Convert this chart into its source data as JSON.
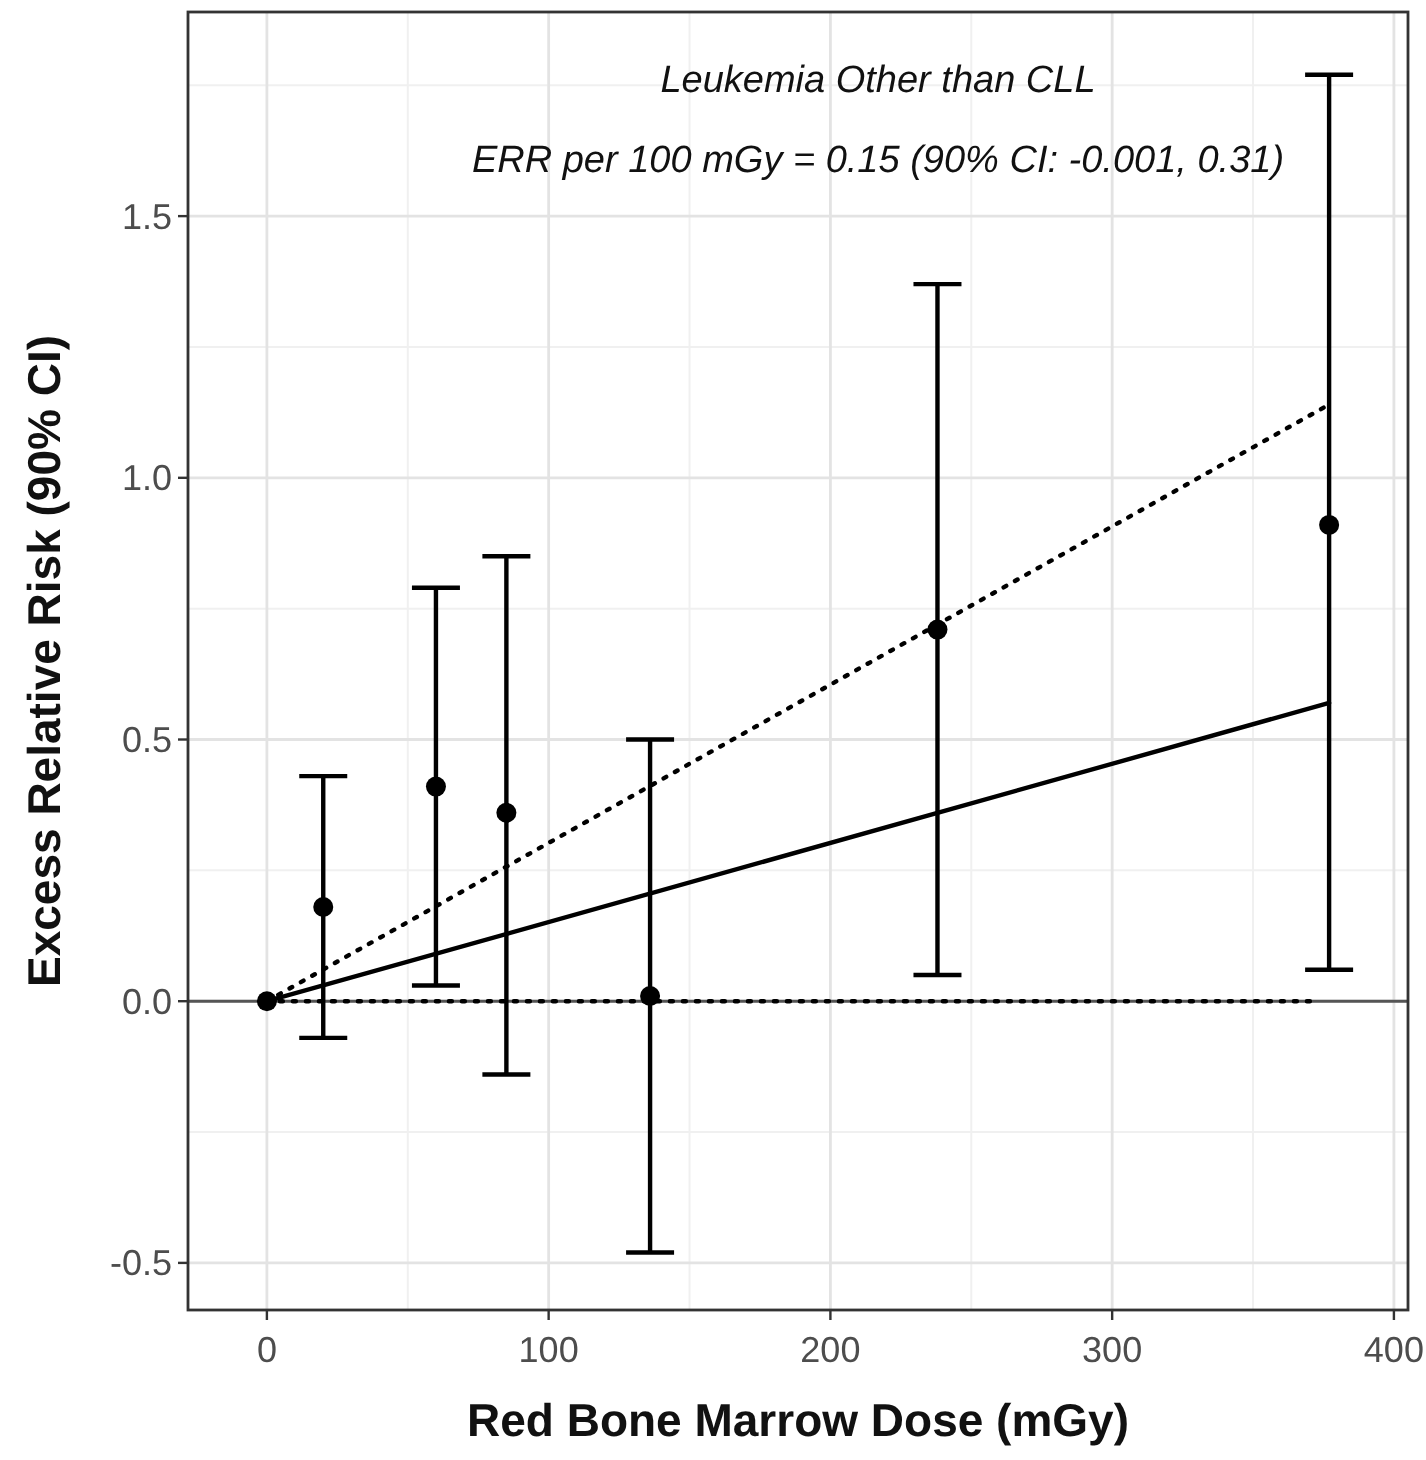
{
  "chart_data": {
    "type": "scatter",
    "title": "Leukemia Other than CLL",
    "subtitle": "ERR per 100 mGy = 0.15 (90% CI: -0.001, 0.31)",
    "xlabel": "Red Bone Marrow Dose (mGy)",
    "ylabel": "Excess Relative Risk (90% CI)",
    "xlim": [
      -28,
      405
    ],
    "xticks": [
      0,
      100,
      200,
      300,
      400
    ],
    "ylim": [
      -0.59,
      1.89
    ],
    "yticks": [
      -0.5,
      {
        "value": 0,
        "label": "0.0"
      },
      0.5,
      {
        "value": 1,
        "label": "1.0"
      },
      1.5
    ],
    "grid": true,
    "ref_lines": [
      {
        "axis": "y",
        "value": 0,
        "color": "#555555"
      }
    ],
    "series": [
      {
        "type": "line",
        "color": "#000000",
        "line_style": "solid",
        "marker": "none",
        "x": [
          0,
          377
        ],
        "values": [
          0,
          0.57
        ]
      },
      {
        "type": "line",
        "color": "#000000",
        "line_style": "dotted",
        "marker": "none",
        "x": [
          0,
          377
        ],
        "values": [
          0,
          1.14
        ]
      },
      {
        "type": "line",
        "color": "#000000",
        "line_style": "dotted",
        "marker": "none",
        "x": [
          0,
          372
        ],
        "values": [
          0,
          0
        ]
      },
      {
        "color": "#000000",
        "marker": "circle",
        "x": [
          0,
          20,
          60,
          85,
          136,
          238,
          377
        ],
        "values": [
          0,
          0.18,
          0.41,
          0.36,
          0.01,
          0.71,
          0.91
        ],
        "errors": [
          null,
          [
            -0.07,
            0.43
          ],
          [
            0.03,
            0.79
          ],
          [
            -0.14,
            0.85
          ],
          [
            -0.48,
            0.5
          ],
          [
            0.05,
            1.37
          ],
          [
            0.06,
            1.77
          ]
        ]
      }
    ]
  }
}
